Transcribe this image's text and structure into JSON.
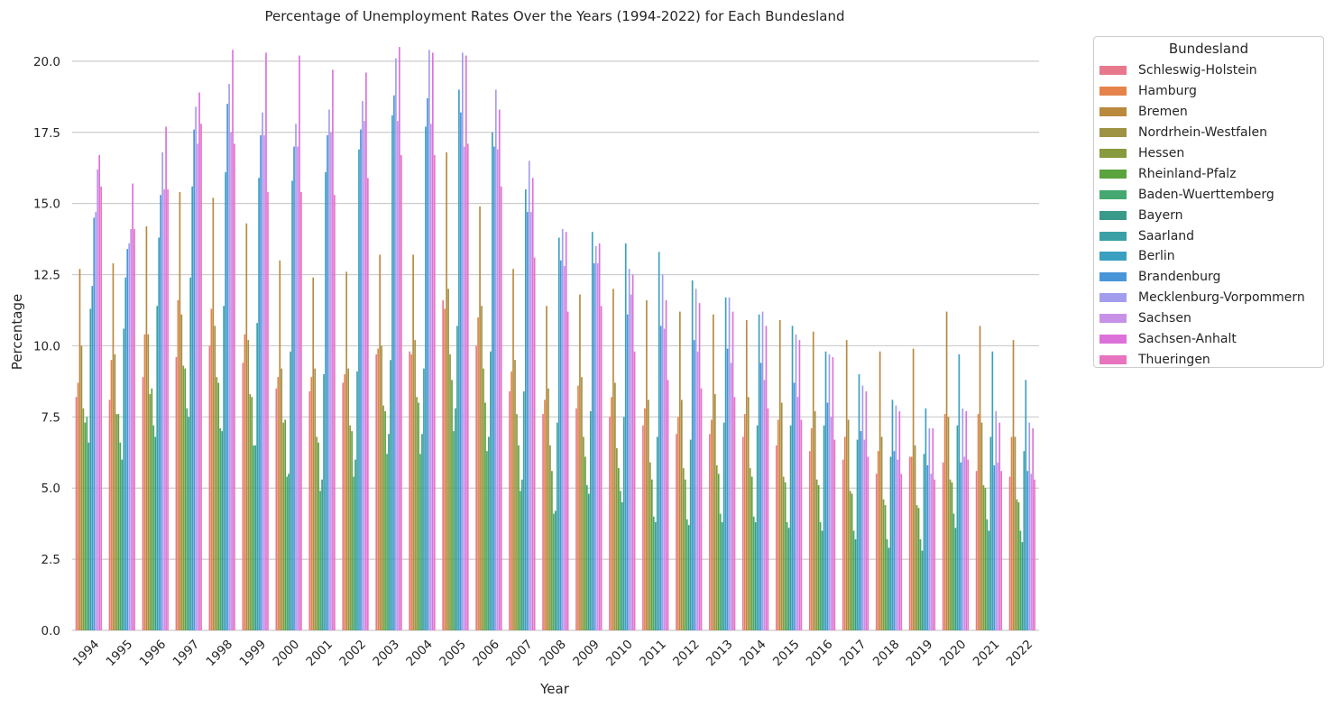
{
  "chart_data": {
    "type": "bar",
    "title": "Percentage of Unemployment Rates Over the Years (1994-2022) for Each Bundesland",
    "xlabel": "Year",
    "ylabel": "Percentage",
    "ylim": [
      0,
      21.2
    ],
    "yticks": [
      "0.0",
      "2.5",
      "5.0",
      "7.5",
      "10.0",
      "12.5",
      "15.0",
      "17.5",
      "20.0"
    ],
    "grid": "horizontal",
    "legend_title": "Bundesland",
    "legend_position": "outside-right",
    "categories": [
      "1994",
      "1995",
      "1996",
      "1997",
      "1998",
      "1999",
      "2000",
      "2001",
      "2002",
      "2003",
      "2004",
      "2005",
      "2006",
      "2007",
      "2008",
      "2009",
      "2010",
      "2011",
      "2012",
      "2013",
      "2014",
      "2015",
      "2016",
      "2017",
      "2018",
      "2019",
      "2020",
      "2021",
      "2022"
    ],
    "series": [
      {
        "name": "Schleswig-Holstein",
        "color": "#e8798d",
        "values": [
          8.2,
          8.1,
          8.9,
          9.6,
          10.0,
          9.4,
          8.5,
          8.4,
          8.7,
          9.7,
          9.8,
          11.6,
          10.0,
          8.4,
          7.6,
          7.8,
          7.5,
          7.2,
          6.9,
          6.9,
          6.8,
          6.5,
          6.3,
          6.0,
          5.5,
          6.1,
          5.9,
          5.6,
          5.4
        ]
      },
      {
        "name": "Hamburg",
        "color": "#e5834a",
        "values": [
          8.7,
          9.5,
          10.4,
          11.6,
          11.3,
          10.4,
          8.9,
          8.9,
          9.0,
          9.9,
          9.7,
          11.3,
          11.0,
          9.1,
          8.1,
          8.6,
          8.2,
          7.8,
          7.5,
          7.4,
          7.6,
          7.4,
          7.1,
          6.8,
          6.3,
          6.1,
          7.6,
          7.6,
          6.8
        ]
      },
      {
        "name": "Bremen",
        "color": "#b9893e",
        "values": [
          12.7,
          12.9,
          14.2,
          15.4,
          15.2,
          14.3,
          13.0,
          12.4,
          12.6,
          13.2,
          13.2,
          16.8,
          14.9,
          12.7,
          11.4,
          11.8,
          12.0,
          11.6,
          11.2,
          11.1,
          10.9,
          10.9,
          10.5,
          10.2,
          9.8,
          9.9,
          11.2,
          10.7,
          10.2
        ]
      },
      {
        "name": "Nordrhein-Westfalen",
        "color": "#9e9244",
        "values": [
          10.0,
          9.7,
          10.4,
          11.1,
          10.7,
          10.2,
          9.2,
          9.2,
          9.2,
          10.0,
          10.2,
          12.0,
          11.4,
          9.5,
          8.5,
          8.9,
          8.7,
          8.1,
          8.1,
          8.3,
          8.2,
          8.0,
          7.7,
          7.4,
          6.8,
          6.5,
          7.5,
          7.3,
          6.8
        ]
      },
      {
        "name": "Hessen",
        "color": "#879a3d",
        "values": [
          7.8,
          7.6,
          8.3,
          9.3,
          8.9,
          8.3,
          7.3,
          6.8,
          7.2,
          7.9,
          8.2,
          9.7,
          9.2,
          7.6,
          6.5,
          6.8,
          6.4,
          5.9,
          5.7,
          5.8,
          5.7,
          5.4,
          5.3,
          4.9,
          4.6,
          4.4,
          5.3,
          5.1,
          4.6
        ]
      },
      {
        "name": "Rheinland-Pfalz",
        "color": "#5aa33d",
        "values": [
          7.3,
          7.6,
          8.5,
          9.2,
          8.7,
          8.2,
          7.4,
          6.6,
          7.0,
          7.7,
          8.0,
          8.8,
          8.0,
          6.5,
          5.6,
          6.1,
          5.7,
          5.3,
          5.3,
          5.5,
          5.4,
          5.2,
          5.1,
          4.8,
          4.4,
          4.3,
          5.2,
          5.0,
          4.5
        ]
      },
      {
        "name": "Baden-Wuerttemberg",
        "color": "#45a870",
        "values": [
          7.5,
          6.6,
          7.2,
          7.8,
          7.1,
          6.5,
          5.4,
          4.9,
          5.4,
          6.2,
          6.2,
          7.0,
          6.3,
          4.9,
          4.1,
          5.1,
          4.9,
          4.0,
          3.9,
          4.1,
          4.0,
          3.8,
          3.8,
          3.5,
          3.2,
          3.2,
          4.1,
          3.9,
          3.5
        ]
      },
      {
        "name": "Bayern",
        "color": "#3a9a8a",
        "values": [
          6.6,
          6.0,
          6.8,
          7.5,
          7.0,
          6.5,
          5.5,
          5.3,
          6.0,
          6.9,
          6.9,
          7.8,
          6.8,
          5.3,
          4.2,
          4.8,
          4.5,
          3.8,
          3.7,
          3.8,
          3.8,
          3.6,
          3.5,
          3.2,
          2.9,
          2.8,
          3.6,
          3.5,
          3.1
        ]
      },
      {
        "name": "Saarland",
        "color": "#3aa0a6",
        "values": [
          11.3,
          10.6,
          11.4,
          12.4,
          11.4,
          10.8,
          9.8,
          9.0,
          9.1,
          9.5,
          9.2,
          10.7,
          9.8,
          8.4,
          7.3,
          7.7,
          7.5,
          6.8,
          6.7,
          7.3,
          7.2,
          7.2,
          7.2,
          6.7,
          6.1,
          6.2,
          7.2,
          6.8,
          6.3
        ]
      },
      {
        "name": "Berlin",
        "color": "#3a9fc0",
        "values": [
          12.1,
          12.4,
          13.8,
          15.6,
          16.1,
          15.9,
          15.8,
          16.1,
          16.9,
          18.1,
          17.7,
          19.0,
          17.5,
          15.5,
          13.8,
          14.0,
          13.6,
          13.3,
          12.3,
          11.7,
          11.1,
          10.7,
          9.8,
          9.0,
          8.1,
          7.8,
          9.7,
          9.8,
          8.8
        ]
      },
      {
        "name": "Brandenburg",
        "color": "#4a95d8",
        "values": [
          14.5,
          13.4,
          15.3,
          17.6,
          18.5,
          17.4,
          17.0,
          17.4,
          17.6,
          18.8,
          18.7,
          18.2,
          17.0,
          14.7,
          13.0,
          12.9,
          11.1,
          10.7,
          10.2,
          9.9,
          9.4,
          8.7,
          8.0,
          7.0,
          6.3,
          5.8,
          5.9,
          5.8,
          5.6
        ]
      },
      {
        "name": "Mecklenburg-Vorpommern",
        "color": "#a39ded",
        "values": [
          14.7,
          13.6,
          16.8,
          18.4,
          19.2,
          18.2,
          17.8,
          18.3,
          18.6,
          20.1,
          20.4,
          20.3,
          19.0,
          16.5,
          14.1,
          13.5,
          12.7,
          12.5,
          12.0,
          11.7,
          11.2,
          10.4,
          9.7,
          8.6,
          7.9,
          7.1,
          7.8,
          7.7,
          7.3
        ]
      },
      {
        "name": "Sachsen",
        "color": "#c791e8",
        "values": [
          16.2,
          14.1,
          15.5,
          17.1,
          17.5,
          17.4,
          17.0,
          17.5,
          17.9,
          17.9,
          17.8,
          17.0,
          16.9,
          14.7,
          12.8,
          12.9,
          11.8,
          10.6,
          9.8,
          9.4,
          8.8,
          8.2,
          7.5,
          6.7,
          6.0,
          5.5,
          6.1,
          5.9,
          5.5
        ]
      },
      {
        "name": "Sachsen-Anhalt",
        "color": "#dd71da",
        "values": [
          16.7,
          15.7,
          17.7,
          18.9,
          20.4,
          20.3,
          20.2,
          19.7,
          19.6,
          20.5,
          20.3,
          20.2,
          18.3,
          15.9,
          14.0,
          13.6,
          12.5,
          11.6,
          11.5,
          11.2,
          10.7,
          10.2,
          9.6,
          8.4,
          7.7,
          7.1,
          7.7,
          7.3,
          7.1
        ]
      },
      {
        "name": "Thueringen",
        "color": "#e874c0",
        "values": [
          15.6,
          14.1,
          15.5,
          17.8,
          17.1,
          15.4,
          15.4,
          15.3,
          15.9,
          16.7,
          16.7,
          17.1,
          15.6,
          13.1,
          11.2,
          11.4,
          9.8,
          8.8,
          8.5,
          8.2,
          7.8,
          7.4,
          6.7,
          6.1,
          5.5,
          5.3,
          6.0,
          5.6,
          5.3
        ]
      }
    ]
  }
}
